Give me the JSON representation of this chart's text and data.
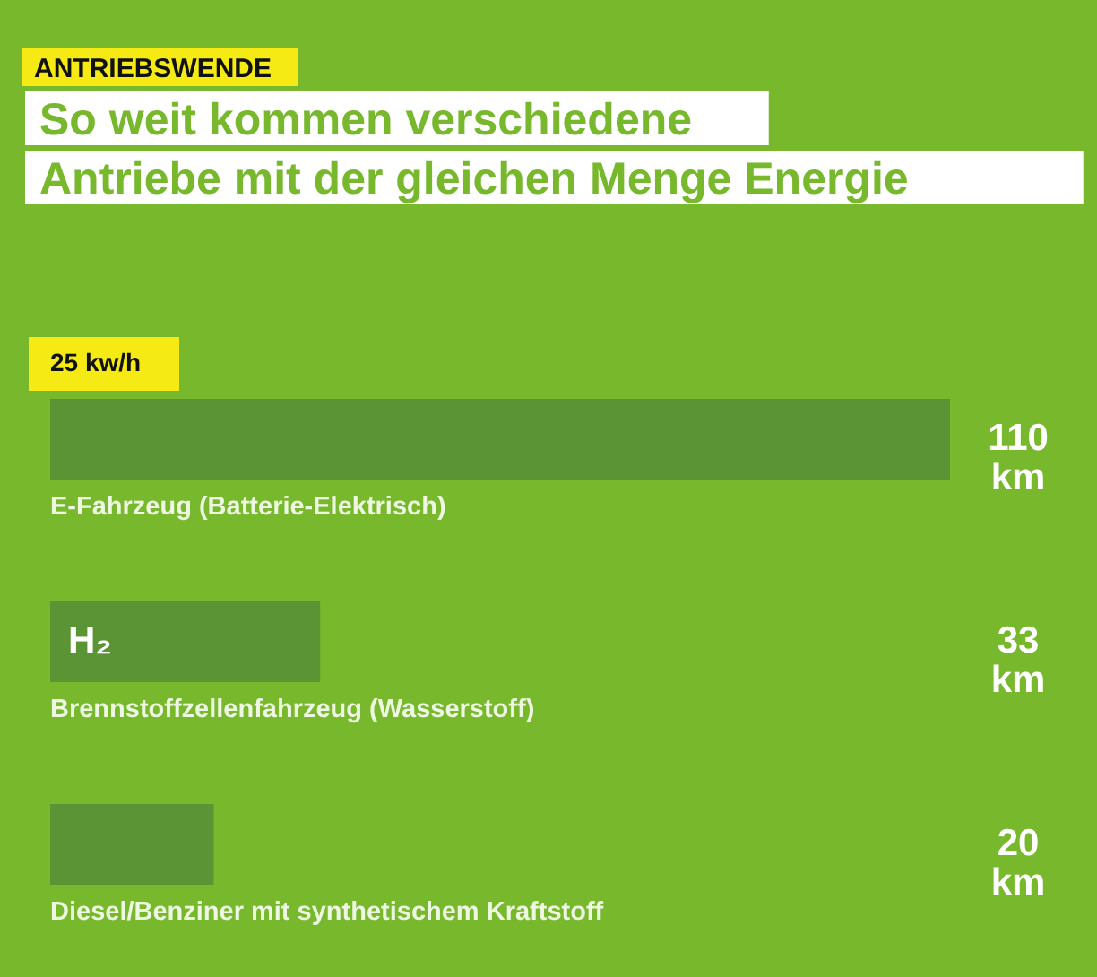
{
  "chart_data": {
    "type": "bar",
    "orientation": "horizontal",
    "subtitle": "ANTRIEBSWENDE",
    "title": "So weit kommen verschiedene\nAntriebe mit der gleichen Menge Energie",
    "categories": [
      "E-Fahrzeug (Batterie-Elektrisch)",
      "Brennstoffzellenfahrzeug (Wasserstoff)",
      "Diesel/Benziner mit synthetischem Kraftstoff"
    ],
    "values": [
      110,
      33,
      20
    ],
    "value_labels": [
      "110 km",
      "33 km",
      "20 km"
    ],
    "color": "#5b9435",
    "annotations": [
      "25 kw/h",
      "H₂"
    ]
  }
}
